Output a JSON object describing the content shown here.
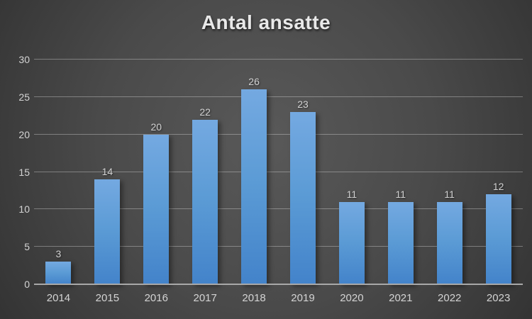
{
  "title": "Antal ansatte",
  "colors": {
    "background_center": "#595959",
    "background_edge": "#242424",
    "bar_top": "#74a9e1",
    "bar_bottom": "#4383ca",
    "gridline": "#9a9a9a",
    "axis_line": "#a8a8a8",
    "tick_label": "#d4d4d4",
    "title_text": "#e9e9e9"
  },
  "chart_data": {
    "type": "bar",
    "title": "Antal ansatte",
    "categories": [
      "2014",
      "2015",
      "2016",
      "2017",
      "2018",
      "2019",
      "2020",
      "2021",
      "2022",
      "2023"
    ],
    "values": [
      3,
      14,
      20,
      22,
      26,
      23,
      11,
      11,
      11,
      12
    ],
    "data_labels": [
      3,
      14,
      20,
      22,
      26,
      23,
      11,
      11,
      11,
      12
    ],
    "xlabel": "",
    "ylabel": "",
    "ylim": [
      0,
      30
    ],
    "y_ticks": [
      0,
      5,
      10,
      15,
      20,
      25,
      30
    ],
    "grid": "horizontal",
    "legend": "none"
  }
}
